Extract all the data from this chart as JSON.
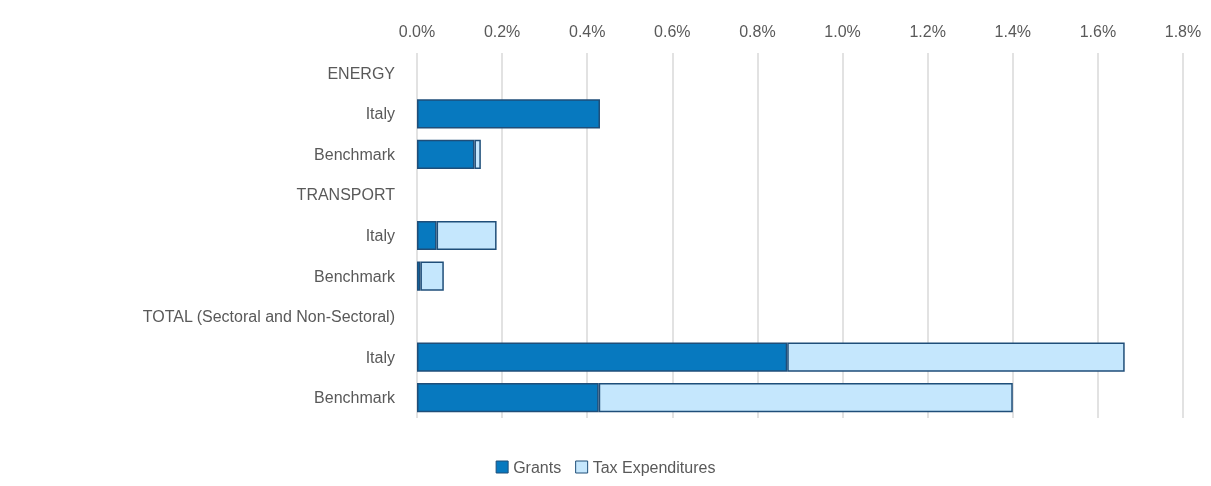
{
  "chart_data": {
    "type": "bar",
    "orientation": "horizontal",
    "stacked": true,
    "categories": [
      "ENERGY",
      "Italy",
      "Benchmark",
      "TRANSPORT",
      "Italy",
      "Benchmark",
      "TOTAL (Sectoral and Non-Sectoral)",
      "Italy",
      "Benchmark"
    ],
    "series": [
      {
        "name": "Grants",
        "color": "#0779bf",
        "values": [
          null,
          0.43,
          0.135,
          null,
          0.046,
          0.008,
          null,
          0.87,
          0.427
        ]
      },
      {
        "name": "Tax Expenditures",
        "color": "#c5e7fd",
        "values": [
          null,
          null,
          0.015,
          null,
          0.141,
          0.055,
          null,
          0.793,
          0.973
        ]
      }
    ],
    "xlim": [
      0,
      1.8
    ],
    "xticks": [
      {
        "value": 0,
        "label": "0.0%"
      },
      {
        "value": 0.2,
        "label": "0.2%"
      },
      {
        "value": 0.4,
        "label": "0.4%"
      },
      {
        "value": 0.6,
        "label": "0.6%"
      },
      {
        "value": 0.8,
        "label": "0.8%"
      },
      {
        "value": 1.0,
        "label": "1.0%"
      },
      {
        "value": 1.2,
        "label": "1.2%"
      },
      {
        "value": 1.4,
        "label": "1.4%"
      },
      {
        "value": 1.6,
        "label": "1.6%"
      },
      {
        "value": 1.8,
        "label": "1.8%"
      }
    ],
    "grid": "x",
    "legend": "bottom"
  }
}
